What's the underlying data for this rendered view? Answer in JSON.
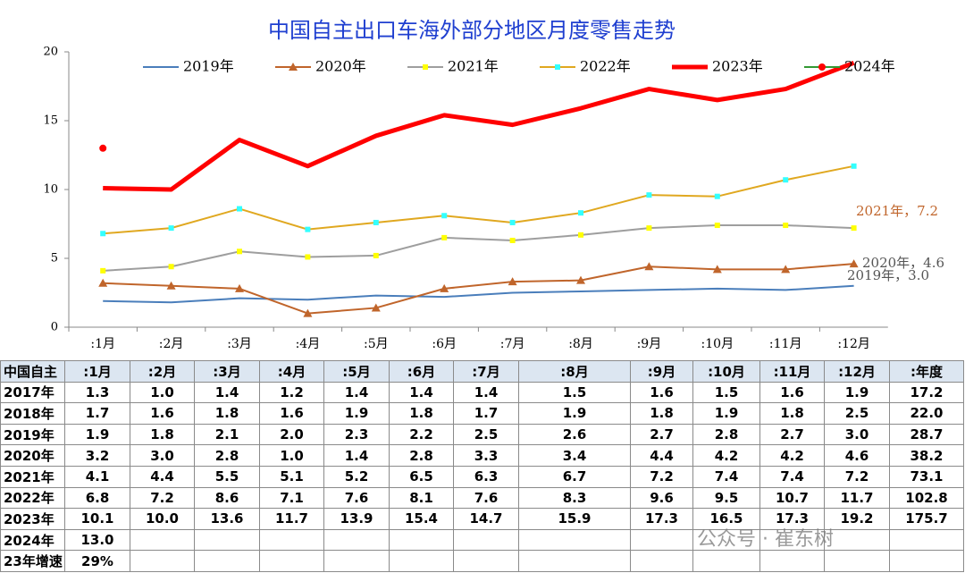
{
  "chart_data": {
    "type": "line",
    "title": "中国自主出口车海外部分地区月度零售走势",
    "categories": [
      ":1月",
      ":2月",
      ":3月",
      ":4月",
      ":5月",
      ":6月",
      ":7月",
      ":8月",
      ":9月",
      ":10月",
      ":11月",
      ":12月"
    ],
    "ylim": [
      0,
      20
    ],
    "yticks": [
      0,
      5,
      10,
      15,
      20
    ],
    "grid": false,
    "legend": "top",
    "series": [
      {
        "name": "2019年",
        "color": "#4a7ebb",
        "width": 2,
        "marker": "none",
        "marker_color": "#4a7ebb",
        "values": [
          1.9,
          1.8,
          2.1,
          2.0,
          2.3,
          2.2,
          2.5,
          2.6,
          2.7,
          2.8,
          2.7,
          3.0
        ]
      },
      {
        "name": "2020年",
        "color": "#c0652b",
        "width": 2,
        "marker": "triangle",
        "marker_color": "#c0652b",
        "values": [
          3.2,
          3.0,
          2.8,
          1.0,
          1.4,
          2.8,
          3.3,
          3.4,
          4.4,
          4.2,
          4.2,
          4.6
        ]
      },
      {
        "name": "2021年",
        "color": "#9e9e9e",
        "width": 2,
        "marker": "square",
        "marker_color": "#ffff00",
        "values": [
          4.1,
          4.4,
          5.5,
          5.1,
          5.2,
          6.5,
          6.3,
          6.7,
          7.2,
          7.4,
          7.4,
          7.2
        ]
      },
      {
        "name": "2022年",
        "color": "#e0a820",
        "width": 2,
        "marker": "square",
        "marker_color": "#33ffff",
        "values": [
          6.8,
          7.2,
          8.6,
          7.1,
          7.6,
          8.1,
          7.6,
          8.3,
          9.6,
          9.5,
          10.7,
          11.7
        ]
      },
      {
        "name": "2023年",
        "color": "#ff0000",
        "width": 5,
        "marker": "none",
        "marker_color": "#ff0000",
        "values": [
          10.1,
          10.0,
          13.6,
          11.7,
          13.9,
          15.4,
          14.7,
          15.9,
          17.3,
          16.5,
          17.3,
          19.2
        ]
      },
      {
        "name": "2024年",
        "color": "#339933",
        "width": 2,
        "marker": "circle",
        "marker_color": "#ff0000",
        "values": [
          13.0,
          null,
          null,
          null,
          null,
          null,
          null,
          null,
          null,
          null,
          null,
          null
        ]
      }
    ],
    "annotations": [
      "2021年，7.2",
      "2020年，4.6",
      "2019年，3.0"
    ]
  },
  "table": {
    "rows": [
      [
        "中国自主",
        ":1月",
        ":2月",
        ":3月",
        ":4月",
        ":5月",
        ":6月",
        ":7月",
        ":8月",
        ":9月",
        ":10月",
        ":11月",
        ":12月",
        ":年度"
      ],
      [
        "2017年",
        "1.3",
        "1.0",
        "1.4",
        "1.2",
        "1.4",
        "1.4",
        "1.4",
        "1.5",
        "1.6",
        "1.5",
        "1.6",
        "1.9",
        "17.2"
      ],
      [
        "2018年",
        "1.7",
        "1.6",
        "1.8",
        "1.6",
        "1.9",
        "1.8",
        "1.7",
        "1.9",
        "1.8",
        "1.9",
        "1.8",
        "2.5",
        "22.0"
      ],
      [
        "2019年",
        "1.9",
        "1.8",
        "2.1",
        "2.0",
        "2.3",
        "2.2",
        "2.5",
        "2.6",
        "2.7",
        "2.8",
        "2.7",
        "3.0",
        "28.7"
      ],
      [
        "2020年",
        "3.2",
        "3.0",
        "2.8",
        "1.0",
        "1.4",
        "2.8",
        "3.3",
        "3.4",
        "4.4",
        "4.2",
        "4.2",
        "4.6",
        "38.2"
      ],
      [
        "2021年",
        "4.1",
        "4.4",
        "5.5",
        "5.1",
        "5.2",
        "6.5",
        "6.3",
        "6.7",
        "7.2",
        "7.4",
        "7.4",
        "7.2",
        "73.1"
      ],
      [
        "2022年",
        "6.8",
        "7.2",
        "8.6",
        "7.1",
        "7.6",
        "8.1",
        "7.6",
        "8.3",
        "9.6",
        "9.5",
        "10.7",
        "11.7",
        "102.8"
      ],
      [
        "2023年",
        "10.1",
        "10.0",
        "13.6",
        "11.7",
        "13.9",
        "15.4",
        "14.7",
        "15.9",
        "17.3",
        "16.5",
        "17.3",
        "19.2",
        "175.7"
      ],
      [
        "2024年",
        "13.0"
      ],
      [
        "23年增速",
        "29%"
      ]
    ]
  },
  "watermark": "公众号 · 崔东树"
}
